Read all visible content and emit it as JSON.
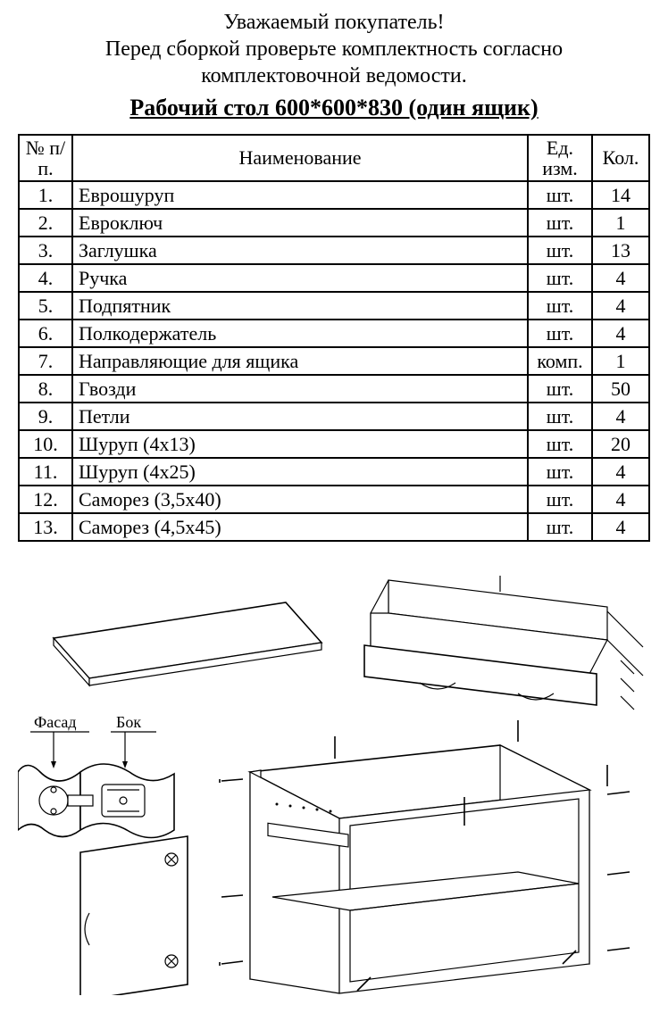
{
  "header": {
    "line1": "Уважаемый покупатель!",
    "line2": "Перед сборкой проверьте комплектность согласно",
    "line3": "комплектовочной ведомости.",
    "product_title": "Рабочий стол 600*600*830 (один ящик)"
  },
  "table": {
    "headers": {
      "num": "№ п/п.",
      "name": "Наименование",
      "unit": "Ед. изм.",
      "qty": "Кол."
    },
    "rows": [
      {
        "num": "1.",
        "name": "Еврошуруп",
        "unit": "шт.",
        "qty": "14"
      },
      {
        "num": "2.",
        "name": "Евроключ",
        "unit": "шт.",
        "qty": "1"
      },
      {
        "num": "3.",
        "name": "Заглушка",
        "unit": "шт.",
        "qty": "13"
      },
      {
        "num": "4.",
        "name": "Ручка",
        "unit": "шт.",
        "qty": "4"
      },
      {
        "num": "5.",
        "name": "Подпятник",
        "unit": "шт.",
        "qty": "4"
      },
      {
        "num": "6.",
        "name": "Полкодержатель",
        "unit": "шт.",
        "qty": "4"
      },
      {
        "num": "7.",
        "name": "Направляющие для ящика",
        "unit": "комп.",
        "qty": "1"
      },
      {
        "num": "8.",
        "name": "Гвозди",
        "unit": "шт.",
        "qty": "50"
      },
      {
        "num": "9.",
        "name": "Петли",
        "unit": "шт.",
        "qty": "4"
      },
      {
        "num": "10.",
        "name": "Шуруп  (4х13)",
        "unit": "шт.",
        "qty": "20"
      },
      {
        "num": "11.",
        "name": "Шуруп  (4х25)",
        "unit": "шт.",
        "qty": "4"
      },
      {
        "num": "12.",
        "name": "Саморез  (3,5х40)",
        "unit": "шт.",
        "qty": "4"
      },
      {
        "num": "13.",
        "name": "Саморез  (4,5х45)",
        "unit": "шт.",
        "qty": "4"
      }
    ]
  },
  "diagram": {
    "label_facade": "Фасад",
    "label_side": "Бок",
    "stroke_color": "#000000",
    "background": "#ffffff"
  }
}
